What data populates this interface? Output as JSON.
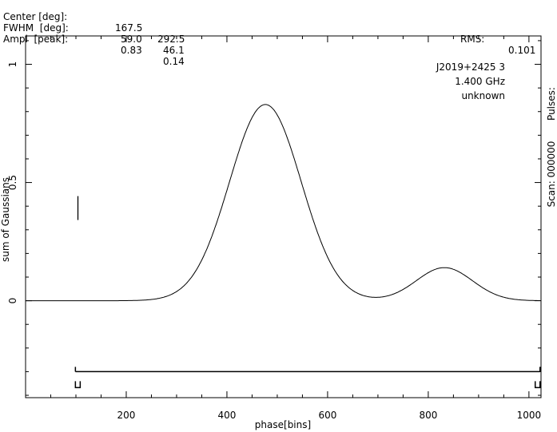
{
  "header": {
    "rows": [
      {
        "label": "Center [deg]:",
        "v1": "167.5",
        "v2": "292.5"
      },
      {
        "label": "FWHM  [deg]:",
        "v1": "59.0",
        "v2": "46.1"
      },
      {
        "label": "Ampl  [peak]:",
        "v1": "0.83",
        "v2": "0.14"
      }
    ],
    "rms_label": "RMS:",
    "rms_value": "0.101"
  },
  "info": {
    "source": "J2019+2425 3",
    "frequency": "1.400 GHz",
    "status": "unknown"
  },
  "right_labels": {
    "pulses": "Pulses:",
    "scan": "Scan: 000000"
  },
  "chart_data": {
    "type": "line",
    "xlabel": "phase[bins]",
    "ylabel": "sum of Gaussians",
    "xlim": [
      0,
      1024
    ],
    "ylim": [
      -0.41,
      1.12
    ],
    "x_ticks": [
      200,
      400,
      600,
      800,
      1000
    ],
    "x_tick_labels": [
      "200",
      "400",
      "600",
      "800",
      "1000"
    ],
    "y_ticks": [
      0,
      0.5,
      1
    ],
    "y_tick_labels": [
      "0",
      "0.5",
      "1"
    ],
    "grid": false,
    "components": [
      {
        "center_bin": 476.4,
        "fwhm_bins": 167.8,
        "amplitude": 0.83
      },
      {
        "center_bin": 832.0,
        "fwhm_bins": 131.1,
        "amplitude": 0.14
      }
    ],
    "rms": 0.101,
    "window": {
      "start_bin": 99,
      "end_bin": 1022,
      "y": -0.3
    }
  }
}
